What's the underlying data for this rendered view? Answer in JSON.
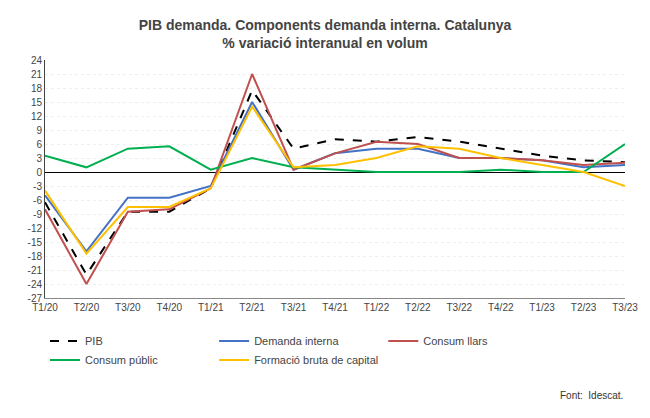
{
  "chart_data": {
    "type": "line",
    "title": "PIB demanda. Components demanda interna. Catalunya\n% variació interanual en volum",
    "annotations": [
      "Font:  Idescat."
    ],
    "categories": [
      "T1/20",
      "T2/20",
      "T3/20",
      "T4/20",
      "T1/21",
      "T2/21",
      "T3/21",
      "T4/21",
      "T1/22",
      "T2/22",
      "T3/22",
      "T4/22",
      "T1/23",
      "T2/23",
      "T3/23"
    ],
    "series": [
      {
        "name": "PIB",
        "color": "#000000",
        "line_style": "dashed",
        "values": [
          -6.5,
          -22.0,
          -8.5,
          -8.5,
          -3.5,
          17.5,
          5.0,
          7.0,
          6.5,
          7.5,
          6.5,
          5.0,
          3.5,
          2.5,
          2.1
        ]
      },
      {
        "name": "Demanda interna",
        "color": "#4472c4",
        "line_style": "solid",
        "values": [
          -5.0,
          -17.0,
          -5.5,
          -5.5,
          -3.0,
          15.0,
          0.5,
          4.0,
          5.0,
          5.0,
          3.0,
          3.0,
          2.5,
          1.0,
          1.5
        ]
      },
      {
        "name": "Consum llars",
        "color": "#c0504d",
        "line_style": "solid",
        "values": [
          -8.0,
          -24.0,
          -8.5,
          -8.0,
          -3.5,
          21.0,
          0.5,
          4.0,
          6.5,
          6.0,
          3.0,
          3.0,
          2.5,
          1.5,
          2.0
        ]
      },
      {
        "name": "Consum públic",
        "color": "#00b050",
        "line_style": "solid",
        "values": [
          3.5,
          1.0,
          5.0,
          5.5,
          0.5,
          3.0,
          1.0,
          0.5,
          0.0,
          0.0,
          0.0,
          0.5,
          0.0,
          0.0,
          6.0
        ]
      },
      {
        "name": "Formació bruta de capital",
        "color": "#ffc000",
        "line_style": "solid",
        "values": [
          -4.0,
          -17.5,
          -7.5,
          -7.5,
          -3.5,
          14.0,
          1.0,
          1.5,
          3.0,
          5.5,
          5.0,
          3.0,
          1.5,
          0.0,
          -3.0
        ]
      }
    ],
    "ylim": [
      -27,
      24
    ],
    "yticks": [
      -27,
      -24,
      -21,
      -18,
      -15,
      -12,
      -9,
      -6,
      -3,
      0,
      3,
      6,
      9,
      12,
      15,
      18,
      21,
      24
    ],
    "grid": true,
    "legend": "bottom"
  }
}
